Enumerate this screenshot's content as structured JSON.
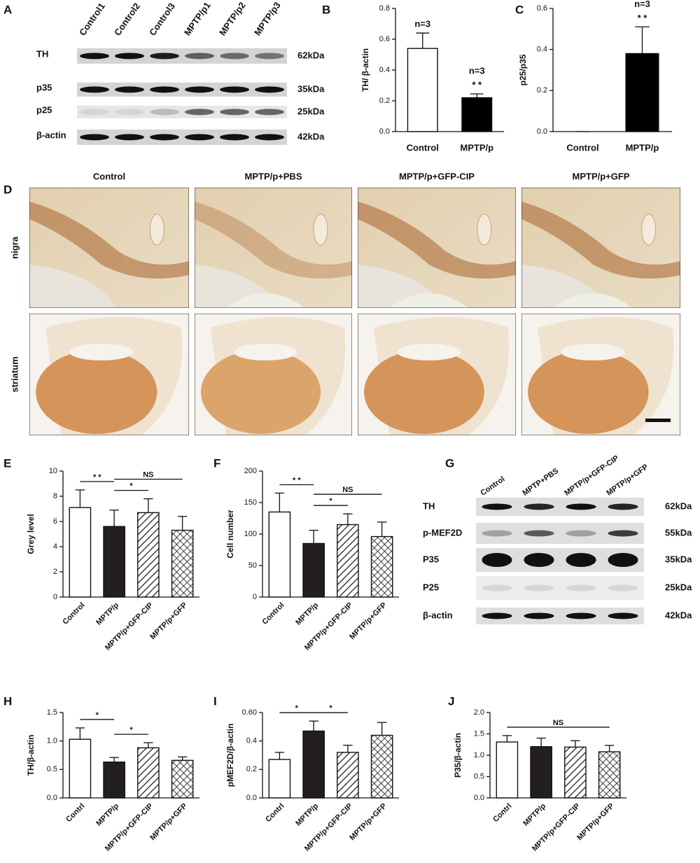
{
  "blot_a": {
    "panel": "A",
    "lanes": [
      "Control1",
      "Control2",
      "Control3",
      "MPTP/p1",
      "MPTP/p2",
      "MPTP/p3"
    ],
    "rows": [
      {
        "label": "TH",
        "size": "62kDa"
      },
      {
        "label": "p35",
        "size": "35kDa"
      },
      {
        "label": "p25",
        "size": "25kDa"
      },
      {
        "label": "β-actin",
        "size": "42kDa"
      }
    ]
  },
  "micrographs": {
    "panel": "D",
    "columns": [
      "Control",
      "MPTP/p+PBS",
      "MPTP/p+GFP-CIP",
      "MPTP/p+GFP"
    ],
    "rows": [
      "nigra",
      "striatum"
    ]
  },
  "blot_g": {
    "panel": "G",
    "lanes": [
      "Control",
      "MPTP+PBS",
      "MPTP/p+GFP-CIP",
      "MPTP/p+GFP"
    ],
    "rows": [
      {
        "label": "TH",
        "size": "62kDa"
      },
      {
        "label": "p-MEF2D",
        "size": "55kDa"
      },
      {
        "label": "P35",
        "size": "35kDa"
      },
      {
        "label": "P25",
        "size": "25kDa"
      },
      {
        "label": "β-actin",
        "size": "42kDa"
      }
    ]
  },
  "chart_data": [
    {
      "panel": "B",
      "type": "bar",
      "categories": [
        "Control",
        "MPTP/p"
      ],
      "values": [
        0.54,
        0.22
      ],
      "errors": [
        0.1,
        0.025
      ],
      "fills": [
        "#ffffff",
        "#000000"
      ],
      "y_label": "TH/ β-actin",
      "ylim": [
        0,
        0.8
      ],
      "yticks": [
        {
          "value": 0,
          "label": "0.0"
        },
        {
          "value": 0.2,
          "label": "0.2"
        },
        {
          "value": 0.4,
          "label": "0.4"
        },
        {
          "value": 0.6,
          "label": "0.6"
        },
        {
          "value": 0.8,
          "label": "0.8"
        }
      ],
      "annotations": [
        [
          "n=3"
        ],
        [
          "n=3",
          "* *"
        ]
      ],
      "brackets": []
    },
    {
      "panel": "C",
      "type": "bar",
      "categories": [
        "Control",
        "MPTP/p"
      ],
      "values": [
        0,
        0.38
      ],
      "errors": [
        0,
        0.13
      ],
      "fills": [
        "#ffffff",
        "#000000"
      ],
      "y_label": "p25/p35",
      "ylim": [
        0,
        0.6
      ],
      "yticks": [
        {
          "value": 0,
          "label": "0.0"
        },
        {
          "value": 0.2,
          "label": "0.2"
        },
        {
          "value": 0.4,
          "label": "0.4"
        },
        {
          "value": 0.6,
          "label": "0.6"
        }
      ],
      "annotations": [
        [],
        [
          "n=3",
          "* *"
        ]
      ],
      "brackets": []
    },
    {
      "panel": "E",
      "type": "bar",
      "categories": [
        "Control",
        "MPTP/p",
        "MPTP/p+GFP-CIP",
        "MPTP/p+GFP"
      ],
      "values": [
        7.1,
        5.6,
        6.7,
        5.3
      ],
      "errors": [
        1.4,
        1.3,
        1.1,
        1.1
      ],
      "fills": [
        "#ffffff",
        "#231f20",
        "hatch",
        "crosshatch"
      ],
      "y_label": "Grey level",
      "ylim": [
        0,
        10
      ],
      "yticks": [
        0,
        2,
        4,
        6,
        8,
        10
      ],
      "annotations": [
        [],
        [],
        [],
        []
      ],
      "brackets": [
        {
          "from": 0,
          "to": 1,
          "text": "* *"
        },
        {
          "from": 1,
          "to": 2,
          "text": "*"
        },
        {
          "from": 1,
          "to": 3,
          "text": "NS"
        }
      ]
    },
    {
      "panel": "F",
      "type": "bar",
      "categories": [
        "Control",
        "MPTP/p",
        "MPTP/p+GFP-CIP",
        "MPTP/p+GFP"
      ],
      "values": [
        135,
        85,
        115,
        96
      ],
      "errors": [
        30,
        21,
        17,
        23
      ],
      "fills": [
        "#ffffff",
        "#231f20",
        "hatch",
        "crosshatch"
      ],
      "y_label": "Cell number",
      "ylim": [
        0,
        200
      ],
      "yticks": [
        0,
        50,
        100,
        150,
        200
      ],
      "annotations": [
        [],
        [],
        [],
        []
      ],
      "brackets": [
        {
          "from": 0,
          "to": 1,
          "text": "* *"
        },
        {
          "from": 1,
          "to": 2,
          "text": "*"
        },
        {
          "from": 1,
          "to": 3,
          "text": "NS"
        }
      ]
    },
    {
      "panel": "H",
      "type": "bar",
      "categories": [
        "Contrl",
        "MPTP/p",
        "MPTP/p+GFP-CIP",
        "MPTP/p+GFP"
      ],
      "values": [
        1.03,
        0.63,
        0.88,
        0.66
      ],
      "errors": [
        0.2,
        0.08,
        0.09,
        0.06
      ],
      "fills": [
        "#ffffff",
        "#231f20",
        "hatch",
        "crosshatch"
      ],
      "y_label": "TH/β-actin",
      "ylim": [
        0,
        1.5
      ],
      "yticks": [
        {
          "value": 0,
          "label": "0.0"
        },
        {
          "value": 0.5,
          "label": "0.5"
        },
        {
          "value": 1,
          "label": "1.0"
        },
        {
          "value": 1.5,
          "label": "1.5"
        }
      ],
      "annotations": [
        [],
        [],
        [],
        []
      ],
      "brackets": [
        {
          "from": 0,
          "to": 1,
          "text": "*"
        },
        {
          "from": 1,
          "to": 2,
          "text": "*"
        }
      ]
    },
    {
      "panel": "I",
      "type": "bar",
      "categories": [
        "Contrl",
        "MPTP/p",
        "MPTP/p+GFP-CIP",
        "MPTP/p+GFP"
      ],
      "values": [
        0.27,
        0.47,
        0.32,
        0.44
      ],
      "errors": [
        0.05,
        0.07,
        0.05,
        0.09
      ],
      "fills": [
        "#ffffff",
        "#231f20",
        "hatch",
        "crosshatch"
      ],
      "y_label": "pMEF2D/β-actin",
      "ylim": [
        0,
        0.6
      ],
      "yticks": [
        {
          "value": 0,
          "label": "0.0"
        },
        {
          "value": 0.2,
          "label": "0.2"
        },
        {
          "value": 0.4,
          "label": "0.4"
        },
        {
          "value": 0.6,
          "label": "0.60"
        }
      ],
      "annotations": [
        [],
        [],
        [],
        []
      ],
      "brackets": [
        {
          "from": 0,
          "to": 1,
          "text": "*"
        },
        {
          "from": 1,
          "to": 2,
          "text": "*"
        }
      ]
    },
    {
      "panel": "J",
      "type": "bar",
      "categories": [
        "Contrl",
        "MPTP/p",
        "MPTP/p+GFP-CIP",
        "MPTP/p+GFP"
      ],
      "values": [
        1.31,
        1.2,
        1.19,
        1.08
      ],
      "errors": [
        0.15,
        0.2,
        0.15,
        0.15
      ],
      "fills": [
        "#ffffff",
        "#231f20",
        "hatch",
        "crosshatch"
      ],
      "y_label": "P35/β-actin",
      "ylim": [
        0,
        2
      ],
      "yticks": [
        {
          "value": 0,
          "label": "0.0"
        },
        {
          "value": 0.5,
          "label": "0.5"
        },
        {
          "value": 1,
          "label": "1.0"
        },
        {
          "value": 1.5,
          "label": "1.5"
        },
        {
          "value": 2,
          "label": "2.0"
        }
      ],
      "annotations": [
        [],
        [],
        [],
        []
      ],
      "brackets": [
        {
          "from": 0,
          "to": 3,
          "text": "NS"
        }
      ]
    }
  ]
}
